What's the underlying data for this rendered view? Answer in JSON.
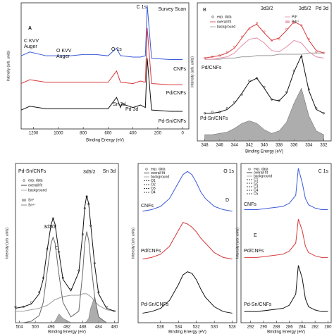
{
  "chart_data": [
    {
      "type": "line",
      "xlabel": "Binding Energy (eV)",
      "ylabel": "Intensity (arb. units)",
      "x": [
        1300,
        1230,
        1100,
        1000,
        900,
        800,
        700,
        600,
        532,
        500,
        490,
        400,
        340,
        300,
        285,
        250,
        100,
        0
      ],
      "xlim": [
        1300,
        -50
      ],
      "xticks": [
        1200,
        1000,
        800,
        600,
        400,
        200,
        0
      ],
      "ylim": [
        0,
        100
      ],
      "series": [
        {
          "color": "#3b5bd9",
          "style": "line",
          "values": [
            58,
            61,
            58,
            58,
            58,
            59,
            59,
            58,
            64,
            58,
            58,
            57,
            57,
            58,
            98,
            56,
            55,
            55
          ]
        },
        {
          "color": "#d8383a",
          "style": "line",
          "values": [
            36,
            39,
            37,
            37,
            37,
            37,
            37,
            37,
            46,
            37,
            37,
            36,
            38,
            37,
            80,
            36,
            35,
            35
          ]
        },
        {
          "color": "#111111",
          "style": "line",
          "values": [
            15,
            18,
            16,
            16,
            16,
            16,
            16,
            16,
            25,
            17,
            20,
            17,
            19,
            17,
            56,
            15,
            14,
            14
          ]
        }
      ],
      "labels": [
        "A",
        "C KVV",
        "Auger",
        "O KVV",
        "Auger",
        "O 1s",
        "C 1s",
        "Survey Scan",
        "CNFs",
        "Pd/CNFs",
        "Sn 3d",
        "Pd 3d",
        "Pd-Sn/CNFs"
      ],
      "legend": []
    },
    {
      "type": "line",
      "xlabel": "Binding Energy (eV)",
      "ylabel": "Intensity (arb. units)",
      "x": [
        348,
        347,
        346,
        345,
        344,
        343,
        342,
        341,
        340,
        339,
        338,
        337,
        336,
        335,
        334,
        333,
        332
      ],
      "xlim": [
        349,
        331
      ],
      "xticks": [
        348,
        346,
        344,
        342,
        340,
        338,
        336,
        334,
        332
      ],
      "ylim": [
        0,
        110
      ],
      "series": [
        {
          "color": "#9a9a9a",
          "style": "line",
          "values": [
            65,
            65,
            65,
            66,
            66,
            67,
            67,
            68,
            68,
            68,
            69,
            69,
            69,
            69,
            70,
            70,
            70
          ]
        },
        {
          "color": "#e58aa6",
          "style": "line",
          "values": [
            65,
            65,
            66,
            67,
            70,
            76,
            81,
            82,
            78,
            72,
            71,
            75,
            80,
            78,
            71,
            67,
            66
          ]
        },
        {
          "color": "#d8383a",
          "style": "markers",
          "values": [
            66,
            67,
            68,
            71,
            75,
            83,
            89,
            94,
            87,
            80,
            81,
            89,
            94,
            92,
            81,
            71,
            70
          ]
        },
        {
          "color": "#d8383a",
          "style": "line",
          "values": [
            66,
            67,
            68,
            70,
            74,
            82,
            90,
            93,
            86,
            80,
            82,
            88,
            95,
            92,
            80,
            72,
            70
          ]
        },
        {
          "color": "#8a8a8a",
          "style": "fill",
          "values": [
            5,
            5,
            6,
            7,
            10,
            14,
            16,
            14,
            9,
            6,
            8,
            15,
            30,
            42,
            20,
            8,
            5
          ]
        },
        {
          "color": "#111111",
          "style": "markers",
          "values": [
            22,
            23,
            23,
            26,
            31,
            37,
            48,
            50,
            43,
            33,
            32,
            39,
            56,
            67,
            41,
            26,
            22
          ]
        },
        {
          "color": "#111111",
          "style": "line",
          "values": [
            22,
            22,
            23,
            25,
            30,
            38,
            47,
            50,
            42,
            33,
            32,
            38,
            55,
            68,
            40,
            25,
            22
          ]
        }
      ],
      "labels": [
        "B",
        "3d3/2",
        "3d5/2",
        "Pd 3d",
        "Pd/CNFs",
        "Pd-Sn/CNFs"
      ],
      "legend": [
        {
          "label": "exp. data",
          "color": "#111111",
          "symbol": "circle"
        },
        {
          "label": "overall fit",
          "color": "#d8383a",
          "symbol": "line"
        },
        {
          "label": "background",
          "color": "#9a9a9a",
          "symbol": "line"
        },
        {
          "label": "Pd⁰",
          "color": "#e58aa6",
          "symbol": "line"
        },
        {
          "label": "Pd²⁺",
          "color": "#e58aa6",
          "symbol": "fill"
        }
      ]
    },
    {
      "type": "line",
      "xlabel": "Binding Energy (eV)",
      "ylabel": "Intensity (arb. units)",
      "x": [
        505,
        503,
        501,
        499,
        498,
        497,
        496,
        495.5,
        495,
        494,
        493,
        491,
        489,
        488,
        487.5,
        487,
        486.5,
        486,
        485,
        484,
        482,
        480
      ],
      "xlim": [
        505,
        479
      ],
      "xticks": [
        504,
        500,
        496,
        492,
        488,
        484,
        480
      ],
      "ylim": [
        0,
        110
      ],
      "series": [
        {
          "color": "#8a8a8a",
          "style": "fill",
          "values": [
            0,
            0,
            0,
            0,
            0,
            0,
            0,
            0,
            1,
            6,
            3,
            0,
            0,
            0,
            0,
            1,
            3,
            10,
            18,
            4,
            0,
            0
          ]
        },
        {
          "color": "#9a9a9a",
          "style": "line",
          "values": [
            8,
            8,
            9,
            10,
            11,
            12,
            14,
            15,
            16,
            17,
            18,
            19,
            19,
            20,
            20,
            20,
            19,
            18,
            15,
            12,
            9,
            8
          ]
        },
        {
          "color": "#666666",
          "style": "line",
          "values": [
            0,
            0,
            1,
            5,
            14,
            35,
            55,
            59,
            55,
            33,
            14,
            4,
            8,
            35,
            55,
            63,
            57,
            43,
            18,
            4,
            0,
            0
          ]
        },
        {
          "color": "#111111",
          "style": "markers",
          "values": [
            11,
            11,
            14,
            21,
            31,
            51,
            67,
            72,
            67,
            49,
            31,
            23,
            36,
            61,
            79,
            87,
            82,
            67,
            41,
            21,
            11,
            8
          ]
        },
        {
          "color": "#111111",
          "style": "line",
          "values": [
            10,
            11,
            13,
            20,
            30,
            50,
            68,
            72,
            68,
            48,
            30,
            22,
            35,
            62,
            80,
            88,
            82,
            68,
            40,
            20,
            10,
            8
          ]
        }
      ],
      "labels": [
        "Pd-Sn/CNFs",
        "Sn 3d",
        "3d5/2",
        "3d3/2",
        "C"
      ],
      "legend": [
        {
          "label": "exp. data",
          "color": "#111111",
          "symbol": "circle"
        },
        {
          "label": "overall fit",
          "color": "#111111",
          "symbol": "line"
        },
        {
          "label": "background",
          "color": "#9a9a9a",
          "symbol": "line"
        },
        {
          "label": "Sn⁰",
          "color": "#8a8a8a",
          "symbol": "fill"
        },
        {
          "label": "Sn⁴⁺",
          "color": "#666666",
          "symbol": "line"
        }
      ]
    },
    {
      "type": "line",
      "xlabel": "Binding Energy (eV)",
      "ylabel": "Intensity (arb. units)",
      "x": [
        538,
        537,
        536,
        535,
        534,
        533.5,
        533,
        532.5,
        532,
        531.5,
        531,
        530,
        529,
        528
      ],
      "xlim": [
        538.5,
        527.5
      ],
      "xticks": [
        536,
        534,
        532,
        530,
        528
      ],
      "ylim": [
        0,
        100
      ],
      "series": [
        {
          "color": "#3b5bd9",
          "style": "line",
          "values": [
            70,
            71,
            73,
            78,
            88,
            93,
            95,
            93,
            88,
            82,
            78,
            73,
            71,
            70
          ]
        },
        {
          "color": "#d8383a",
          "style": "line",
          "values": [
            40,
            41,
            43,
            48,
            58,
            63,
            62,
            60,
            57,
            53,
            50,
            44,
            41,
            40
          ]
        },
        {
          "color": "#111111",
          "style": "line",
          "values": [
            6,
            7,
            9,
            14,
            24,
            30,
            32,
            31,
            27,
            21,
            16,
            10,
            7,
            6
          ]
        }
      ],
      "labels": [
        "CNFs",
        "Pd/CNFs",
        "Pd-Sn/CNFs",
        "O 1s",
        "D"
      ],
      "legend": [
        {
          "label": "exp. data",
          "color": "#111111",
          "symbol": "circle"
        },
        {
          "label": "overall fit",
          "color": "#111111",
          "symbol": "line"
        },
        {
          "label": "background",
          "color": "#9a9a9a",
          "symbol": "line"
        },
        {
          "label": "O1",
          "color": "#111111",
          "symbol": "dash"
        },
        {
          "label": "O2",
          "color": "#111111",
          "symbol": "dash"
        },
        {
          "label": "O3",
          "color": "#111111",
          "symbol": "dash"
        },
        {
          "label": "O4",
          "color": "#111111",
          "symbol": "dash"
        }
      ]
    },
    {
      "type": "line",
      "xlabel": "Binding Energy (eV)",
      "ylabel": "Intensity (arb. units)",
      "x": [
        293,
        291,
        289,
        287,
        286,
        285,
        284.6,
        284,
        283.5,
        283,
        282,
        281,
        280
      ],
      "xlim": [
        293.5,
        279.5
      ],
      "xticks": [
        292,
        290,
        288,
        286,
        284,
        282,
        280
      ],
      "ylim": [
        0,
        100
      ],
      "series": [
        {
          "color": "#3b5bd9",
          "style": "line",
          "values": [
            71,
            71,
            72,
            73,
            75,
            80,
            97,
            88,
            78,
            74,
            72,
            71,
            71
          ]
        },
        {
          "color": "#d8383a",
          "style": "line",
          "values": [
            41,
            41,
            42,
            43,
            45,
            50,
            65,
            58,
            48,
            44,
            42,
            41,
            41
          ]
        },
        {
          "color": "#111111",
          "style": "line",
          "values": [
            7,
            7,
            8,
            9,
            11,
            18,
            36,
            28,
            15,
            10,
            8,
            7,
            7
          ]
        }
      ],
      "labels": [
        "C 1s",
        "CNFs",
        "Pd/CNFs",
        "Pd-Sn/CNFs",
        "E"
      ],
      "legend": [
        {
          "label": "exp. data",
          "color": "#111111",
          "symbol": "circle"
        },
        {
          "label": "overall fit",
          "color": "#111111",
          "symbol": "line"
        },
        {
          "label": "background",
          "color": "#9a9a9a",
          "symbol": "line"
        },
        {
          "label": "C1",
          "color": "#111111",
          "symbol": "dash"
        },
        {
          "label": "C2",
          "color": "#111111",
          "symbol": "dash"
        },
        {
          "label": "C3",
          "color": "#111111",
          "symbol": "dash"
        },
        {
          "label": "C4",
          "color": "#111111",
          "symbol": "dash"
        },
        {
          "label": "C5",
          "color": "#111111",
          "symbol": "dash"
        }
      ]
    }
  ]
}
